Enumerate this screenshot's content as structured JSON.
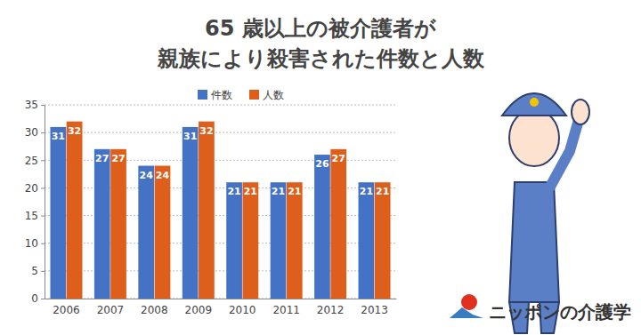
{
  "chart_data": {
    "type": "bar",
    "title": "65 歳以上の被介護者が\n親族により殺害された件数と人数",
    "categories": [
      "2006",
      "2007",
      "2008",
      "2009",
      "2010",
      "2011",
      "2012",
      "2013"
    ],
    "series": [
      {
        "name": "件数",
        "color": "#4472c4",
        "values": [
          31,
          27,
          24,
          31,
          21,
          21,
          26,
          21
        ]
      },
      {
        "name": "人数",
        "color": "#de5f1b",
        "values": [
          32,
          27,
          24,
          32,
          21,
          21,
          27,
          21
        ]
      }
    ],
    "ylim": [
      0,
      35
    ],
    "yticks": [
      0,
      5,
      10,
      15,
      20,
      25,
      30,
      35
    ],
    "grid": true,
    "legend": "top",
    "data_labels": true,
    "annotations": [
      "ニッポンの介護学"
    ]
  }
}
